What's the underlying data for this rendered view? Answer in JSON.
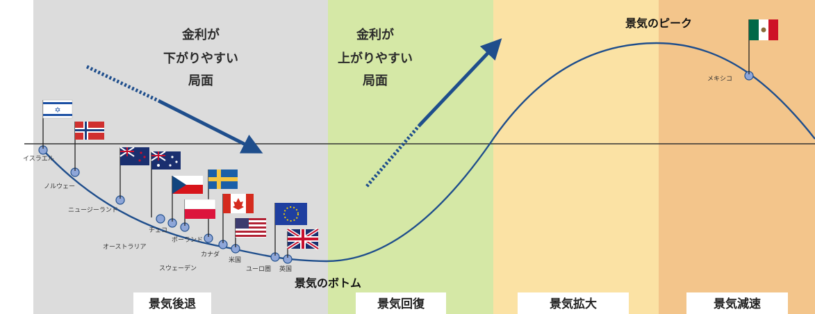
{
  "phases": [
    {
      "label": "景気後退",
      "color": "#dcdcdc"
    },
    {
      "label": "景気回復",
      "color": "#d5e8a6"
    },
    {
      "label": "景気拡大",
      "color": "#fbe2a4"
    },
    {
      "label": "景気減速",
      "color": "#f3c58b"
    }
  ],
  "annotations": {
    "falling_rates": {
      "line1": "金利が",
      "line2": "下がりやすい",
      "line3": "局面"
    },
    "rising_rates": {
      "line1": "金利が",
      "line2": "上がりやすい",
      "line3": "局面"
    },
    "peak": "景気のピーク",
    "bottom": "景気のボトム"
  },
  "countries": [
    {
      "label": "イスラエル",
      "flag": "israel-flag"
    },
    {
      "label": "ノルウェー",
      "flag": "norway-flag"
    },
    {
      "label": "ニュージーランド",
      "flag": "new-zealand-flag"
    },
    {
      "label": "チェコ",
      "flag": "czech-flag"
    },
    {
      "label": "オーストラリア",
      "flag": "australia-flag"
    },
    {
      "label": "ポーランド",
      "flag": "poland-flag"
    },
    {
      "label": "スウェーデン",
      "flag": "sweden-flag"
    },
    {
      "label": "カナダ",
      "flag": "canada-flag"
    },
    {
      "label": "米国",
      "flag": "usa-flag"
    },
    {
      "label": "ユーロ圏",
      "flag": "eu-flag"
    },
    {
      "label": "英国",
      "flag": "uk-flag"
    },
    {
      "label": "メキシコ",
      "flag": "mexico-flag"
    }
  ],
  "colors": {
    "curve": "#1f4e8c",
    "arrow": "#1f4e8c",
    "axis": "#333333",
    "node": "#8ea6d8"
  }
}
